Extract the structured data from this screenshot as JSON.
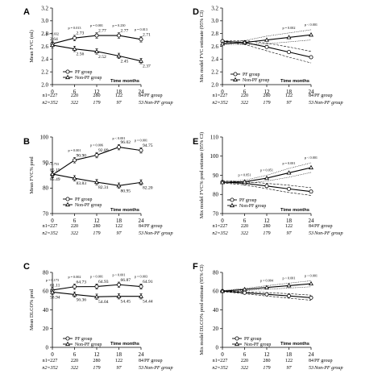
{
  "chart_data": [
    {
      "id": "A",
      "type": "line",
      "ylabel": "Mean FVC (ml)",
      "x": [
        0,
        6,
        12,
        18,
        24
      ],
      "ylim": [
        2.0,
        3.2
      ],
      "yticks": [
        2.0,
        2.2,
        2.4,
        2.6,
        2.8,
        3.0,
        3.2
      ],
      "xlabel": "Time months",
      "series": [
        {
          "name": "PF group",
          "marker": "circle",
          "values": [
            2.64,
            2.73,
            2.77,
            2.77,
            2.71
          ],
          "labels": [
            "2.64",
            "2.73",
            "2.77",
            "2.77",
            "2.71"
          ]
        },
        {
          "name": "Non-PF group",
          "marker": "triangle",
          "values": [
            2.62,
            2.56,
            2.52,
            2.45,
            2.37
          ],
          "labels": [
            "",
            "2.56",
            "2.52",
            "2.45",
            "2.37"
          ]
        }
      ],
      "pvalues": [
        "p = 0.032",
        "p = 0.013",
        "p = 0.001",
        "p = 0.230",
        "p = 0.013"
      ],
      "table": [
        {
          "lead": "n1=227",
          "nums": [
            "220",
            "280",
            "122",
            "84"
          ],
          "tail": "PF group"
        },
        {
          "lead": "n2=352",
          "nums": [
            "322",
            "179",
            "97",
            "53"
          ],
          "tail": "Non-PF group"
        }
      ]
    },
    {
      "id": "B",
      "type": "line",
      "ylabel": "Mean FVC% pred",
      "x": [
        0,
        6,
        12,
        18,
        24
      ],
      "ylim": [
        70,
        100
      ],
      "yticks": [
        70,
        80,
        90,
        100
      ],
      "xlabel": "Time months",
      "series": [
        {
          "name": "PF group",
          "marker": "circle",
          "values": [
            85.15,
            90.9,
            92.89,
            96.02,
            94.75
          ],
          "labels": [
            "85.15",
            "90.90",
            "92.89",
            "96.02",
            "94.75"
          ]
        },
        {
          "name": "Non-PF group",
          "marker": "triangle",
          "values": [
            85.49,
            83.83,
            82.31,
            80.95,
            82.2
          ],
          "labels": [
            "85.49",
            "83.83",
            "82.31",
            "80.95",
            "82.20"
          ]
        }
      ],
      "pvalues": [
        "p = 0.753",
        "p = 0.001",
        "p = 0.006",
        "p < 0.001",
        "p = 0.001"
      ],
      "table": [
        {
          "lead": "n1=227",
          "nums": [
            "220",
            "280",
            "122",
            "84"
          ],
          "tail": "PF group"
        },
        {
          "lead": "n2=352",
          "nums": [
            "322",
            "179",
            "97",
            "53"
          ],
          "tail": "Non-PF group"
        }
      ]
    },
    {
      "id": "C",
      "type": "line",
      "ylabel": "Mean DLCO% pred",
      "x": [
        0,
        6,
        12,
        18,
        24
      ],
      "ylim": [
        0,
        80
      ],
      "yticks": [
        0,
        20,
        40,
        60,
        80
      ],
      "xlabel": "Time months",
      "series": [
        {
          "name": "PF group",
          "marker": "circle",
          "values": [
            61.11,
            64.73,
            64.93,
            66.87,
            64.91
          ],
          "labels": [
            "61.11",
            "64.73",
            "64.93",
            "66.87",
            "64.91"
          ]
        },
        {
          "name": "Non-PF group",
          "marker": "triangle",
          "values": [
            58.94,
            56.36,
            54.04,
            54.45,
            54.44
          ],
          "labels": [
            "58.94",
            "56.36",
            "54.04",
            "54.45",
            "54.44"
          ]
        }
      ],
      "pvalues": [
        "p = 0.173",
        "p = 0.002",
        "p < 0.001",
        "p < 0.001",
        "p = 0.003"
      ],
      "table": [
        {
          "lead": "n1=227",
          "nums": [
            "220",
            "280",
            "122",
            "84"
          ],
          "tail": "PF group"
        },
        {
          "lead": "n2=352",
          "nums": [
            "322",
            "179",
            "97",
            "53"
          ],
          "tail": "Non-PF group"
        }
      ]
    },
    {
      "id": "D",
      "type": "line",
      "ylabel": "Mix model FVC estimate (95% CI)",
      "x": [
        0,
        6,
        12,
        18,
        24
      ],
      "ylim": [
        2.0,
        3.2
      ],
      "yticks": [
        2.0,
        2.2,
        2.4,
        2.6,
        2.8,
        3.0,
        3.2
      ],
      "xlabel": "Time months",
      "series": [
        {
          "name": "PF group",
          "marker": "circle",
          "values": [
            2.68,
            2.66,
            2.59,
            2.51,
            2.43
          ],
          "ci_low": [
            2.67,
            2.63,
            2.53,
            2.43,
            2.34
          ],
          "ci_high": [
            2.69,
            2.69,
            2.65,
            2.59,
            2.52
          ]
        },
        {
          "name": "Non-PF group",
          "marker": "triangle",
          "values": [
            2.64,
            2.66,
            2.7,
            2.74,
            2.78
          ],
          "ci_low": [
            2.63,
            2.63,
            2.64,
            2.67,
            2.7
          ],
          "ci_high": [
            2.65,
            2.69,
            2.76,
            2.81,
            2.86
          ]
        }
      ],
      "pvalues": [
        "",
        "",
        "",
        "p = 0.002",
        "p < 0.001"
      ],
      "table": [
        {
          "lead": "n1=227",
          "nums": [
            "220",
            "280",
            "122",
            "84"
          ],
          "tail": "PF group"
        },
        {
          "lead": "n2=352",
          "nums": [
            "322",
            "179",
            "97",
            "53"
          ],
          "tail": "Non-PF group"
        }
      ]
    },
    {
      "id": "E",
      "type": "line",
      "ylabel": "Mix model FVC% pred estimate (95% CI)",
      "x": [
        0,
        6,
        12,
        18,
        24
      ],
      "ylim": [
        70,
        110
      ],
      "yticks": [
        70,
        80,
        90,
        100,
        110
      ],
      "xlabel": "Time months",
      "series": [
        {
          "name": "PF group",
          "marker": "circle",
          "values": [
            86.5,
            85.8,
            84.4,
            82.9,
            81.5
          ],
          "ci_low": [
            86.0,
            85.0,
            83.0,
            81.0,
            79.5
          ],
          "ci_high": [
            87.0,
            86.6,
            85.8,
            84.8,
            83.5
          ]
        },
        {
          "name": "Non-PF group",
          "marker": "triangle",
          "values": [
            86.3,
            86.6,
            88.5,
            91.3,
            94.0
          ],
          "ci_low": [
            85.8,
            85.8,
            87.0,
            89.0,
            91.5
          ],
          "ci_high": [
            86.8,
            87.4,
            90.0,
            93.6,
            96.5
          ]
        }
      ],
      "pvalues": [
        "",
        "p = 0.851",
        "p = 0.051",
        "p = 0.001",
        "p < 0.001"
      ],
      "table": [
        {
          "lead": "n1=227",
          "nums": [
            "220",
            "280",
            "122",
            "84"
          ],
          "tail": "PF group"
        },
        {
          "lead": "n2=352",
          "nums": [
            "322",
            "179",
            "97",
            "53"
          ],
          "tail": "Non-PF group"
        }
      ]
    },
    {
      "id": "F",
      "type": "line",
      "ylabel": "Mix model DLCO% pred estimate (95% CI)",
      "x": [
        0,
        6,
        12,
        18,
        24
      ],
      "ylim": [
        0,
        80
      ],
      "yticks": [
        0,
        20,
        40,
        60,
        80
      ],
      "xlabel": "Time months",
      "series": [
        {
          "name": "PF group",
          "marker": "circle",
          "values": [
            60.0,
            58.3,
            56.6,
            54.9,
            53.0
          ],
          "ci_low": [
            59.5,
            57.2,
            54.8,
            52.5,
            50.3
          ],
          "ci_high": [
            60.5,
            59.4,
            58.4,
            57.3,
            55.7
          ]
        },
        {
          "name": "Non-PF group",
          "marker": "triangle",
          "values": [
            60.0,
            61.8,
            63.9,
            65.9,
            67.9
          ],
          "ci_low": [
            59.5,
            60.6,
            62.0,
            63.3,
            64.7
          ],
          "ci_high": [
            60.5,
            63.0,
            65.8,
            68.5,
            71.1
          ]
        }
      ],
      "pvalues": [
        "",
        "",
        "p = 0.004",
        "p < 0.001",
        "p < 0.001"
      ],
      "table": [
        {
          "lead": "n1=227",
          "nums": [
            "220",
            "280",
            "122",
            "84"
          ],
          "tail": "PF group"
        },
        {
          "lead": "n2=352",
          "nums": [
            "322",
            "179",
            "97",
            "53"
          ],
          "tail": "Non-PF group"
        }
      ]
    }
  ]
}
